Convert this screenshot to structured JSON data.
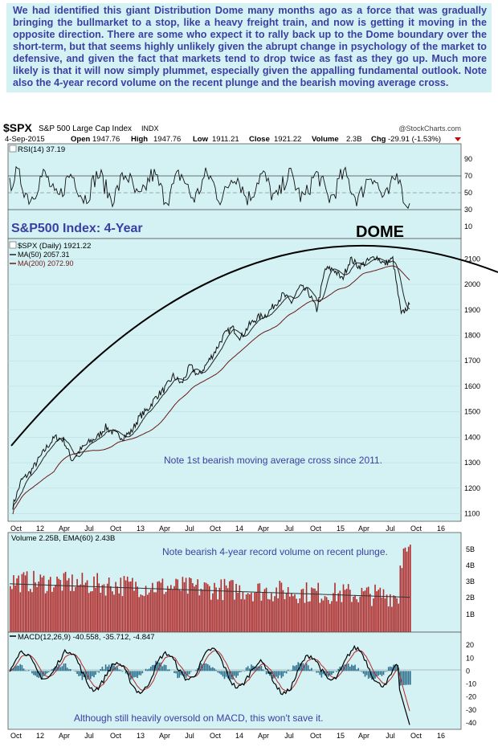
{
  "intro_text": "We had identified this giant Distribution Dome many months ago as a force that was gradually bringing the bullmarket to a stop, like a heavy freight train, and now is getting it moving in the opposite direction. There are some who expect it to rally back up to the Dome boundary over the short-term, but that seems highly unlikely given the abrupt change in psychology of the market to defensive, and given the fact that markets tend to drop twice as fast as they go up. Much more likely is that it will now simply plummet, especially given the appalling fundamental outlook. Note also the 4-year record volume on the recent plunge and the bearish moving average cross.",
  "header": {
    "symbol": "$SPX",
    "name": "S&P 500 Large Cap Index",
    "exchange": "INDX",
    "watermark": "@StockCharts.com",
    "date": "4-Sep-2015",
    "open_label": "Open",
    "open": "1947.76",
    "high_label": "High",
    "high": "1947.76",
    "low_label": "Low",
    "low": "1911.21",
    "close_label": "Close",
    "close": "1921.22",
    "volume_label": "Volume",
    "volume": "2.3B",
    "chg_label": "Chg",
    "chg": "-29.91 (-1.53%)"
  },
  "colors": {
    "panel_bg": "#d4f2f4",
    "annotation": "#3b3fa3",
    "volume_bar": "#b02a2a",
    "price_line": "#111111",
    "ma200": "#6b1a1a",
    "macd_hist": "#2e6f8e"
  },
  "chart_data": [
    {
      "type": "line",
      "panel": "rsi",
      "legend": "RSI(14) 37.19",
      "indicator": "RSI(14)",
      "last_value": 37.19,
      "y_ticks": [
        10,
        30,
        50,
        70,
        90
      ],
      "ylim": [
        0,
        100
      ],
      "reference_lines": [
        30,
        50,
        70
      ]
    },
    {
      "type": "line",
      "panel": "price",
      "annotation_title": "S&P500 Index: 4-Year",
      "annotation_dome": "DOME",
      "annotation_note": "Note 1st bearish moving average cross since 2011.",
      "x_ticks": [
        "Oct",
        "12",
        "Apr",
        "Jul",
        "Oct",
        "13",
        "Apr",
        "Jul",
        "Oct",
        "14",
        "Apr",
        "Jul",
        "Oct",
        "15",
        "Apr",
        "Jul",
        "Oct",
        "16"
      ],
      "y_ticks": [
        1100,
        1200,
        1300,
        1400,
        1500,
        1600,
        1700,
        1800,
        1900,
        2000,
        2100
      ],
      "ylim": [
        1070,
        2180
      ],
      "series": [
        {
          "name": "$SPX (Daily) 1921.22",
          "last": 1921.22
        },
        {
          "name": "MA(50) 2057.31",
          "last": 2057.31
        },
        {
          "name": "MA(200) 2072.90",
          "last": 2072.9
        }
      ],
      "x": [
        "2011-10",
        "2011-11",
        "2011-12",
        "2012-01",
        "2012-02",
        "2012-03",
        "2012-04",
        "2012-05",
        "2012-06",
        "2012-07",
        "2012-08",
        "2012-09",
        "2012-10",
        "2012-11",
        "2012-12",
        "2013-01",
        "2013-02",
        "2013-03",
        "2013-04",
        "2013-05",
        "2013-06",
        "2013-07",
        "2013-08",
        "2013-09",
        "2013-10",
        "2013-11",
        "2013-12",
        "2014-01",
        "2014-02",
        "2014-03",
        "2014-04",
        "2014-05",
        "2014-06",
        "2014-07",
        "2014-08",
        "2014-09",
        "2014-10",
        "2014-11",
        "2014-12",
        "2015-01",
        "2015-02",
        "2015-03",
        "2015-04",
        "2015-05",
        "2015-06",
        "2015-07",
        "2015-08",
        "2015-09"
      ],
      "values": [
        1130,
        1230,
        1260,
        1310,
        1360,
        1400,
        1390,
        1310,
        1350,
        1380,
        1400,
        1440,
        1415,
        1400,
        1420,
        1480,
        1510,
        1560,
        1590,
        1640,
        1610,
        1680,
        1640,
        1690,
        1740,
        1800,
        1830,
        1790,
        1840,
        1870,
        1880,
        1920,
        1960,
        1930,
        1990,
        1970,
        1900,
        2060,
        2060,
        2020,
        2100,
        2070,
        2090,
        2110,
        2080,
        2100,
        1880,
        1921
      ]
    },
    {
      "type": "bar",
      "panel": "volume",
      "legend": "Volume 2.25B, EMA(60) 2.43B",
      "annotation": "Note bearish 4-year record volume on recent plunge.",
      "y_ticks": [
        "1B",
        "2B",
        "3B",
        "4B",
        "5B"
      ],
      "ylim": [
        0,
        6
      ]
    },
    {
      "type": "line",
      "panel": "macd",
      "legend": "MACD(12,26,9) -40.558, -35.712, -4.847",
      "last_values": [
        -40.558,
        -35.712,
        -4.847
      ],
      "annotation": "Although still heavily oversold on MACD, this won't save it.",
      "y_ticks": [
        20,
        10,
        0,
        -10,
        -20,
        -30,
        -40
      ],
      "ylim": [
        -45,
        30
      ],
      "x_ticks": [
        "Oct",
        "12",
        "Apr",
        "Jul",
        "Oct",
        "13",
        "Apr",
        "Jul",
        "Oct",
        "14",
        "Apr",
        "Jul",
        "Oct",
        "15",
        "Apr",
        "Jul",
        "Oct",
        "16"
      ]
    }
  ]
}
